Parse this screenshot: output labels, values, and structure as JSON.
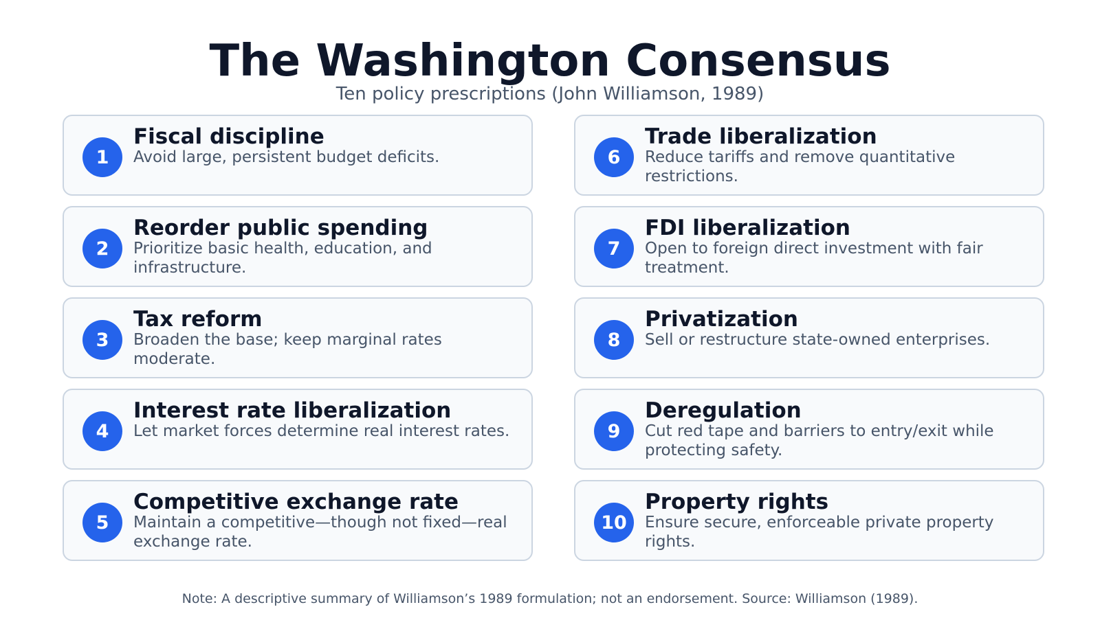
{
  "header": {
    "title": "The Washington Consensus",
    "subtitle": "Ten policy prescriptions (John Williamson, 1989)"
  },
  "colors": {
    "badge": "#2563eb",
    "card_background": "#f8fafc",
    "card_border": "#cbd5e1",
    "title_text": "#0f172a",
    "body_text": "#475569"
  },
  "policies": [
    {
      "number": "1",
      "title": "Fiscal discipline",
      "description": "Avoid large, persistent budget deficits."
    },
    {
      "number": "2",
      "title": "Reorder public spending",
      "description": "Prioritize basic health, education, and infrastructure."
    },
    {
      "number": "3",
      "title": "Tax reform",
      "description": "Broaden the base; keep marginal rates moderate."
    },
    {
      "number": "4",
      "title": "Interest rate liberalization",
      "description": "Let market forces determine real interest rates."
    },
    {
      "number": "5",
      "title": "Competitive exchange rate",
      "description": "Maintain a competitive—though not fixed—real exchange rate."
    },
    {
      "number": "6",
      "title": "Trade liberalization",
      "description": "Reduce tariffs and remove quantitative restrictions."
    },
    {
      "number": "7",
      "title": "FDI liberalization",
      "description": "Open to foreign direct investment with fair treatment."
    },
    {
      "number": "8",
      "title": "Privatization",
      "description": "Sell or restructure state-owned enterprises."
    },
    {
      "number": "9",
      "title": "Deregulation",
      "description": "Cut red tape and barriers to entry/exit while protecting safety."
    },
    {
      "number": "10",
      "title": "Property rights",
      "description": "Ensure secure, enforceable private property rights."
    }
  ],
  "footer": {
    "note": "Note: A descriptive summary of Williamson’s 1989 formulation; not an endorsement. Source: Williamson (1989)."
  }
}
